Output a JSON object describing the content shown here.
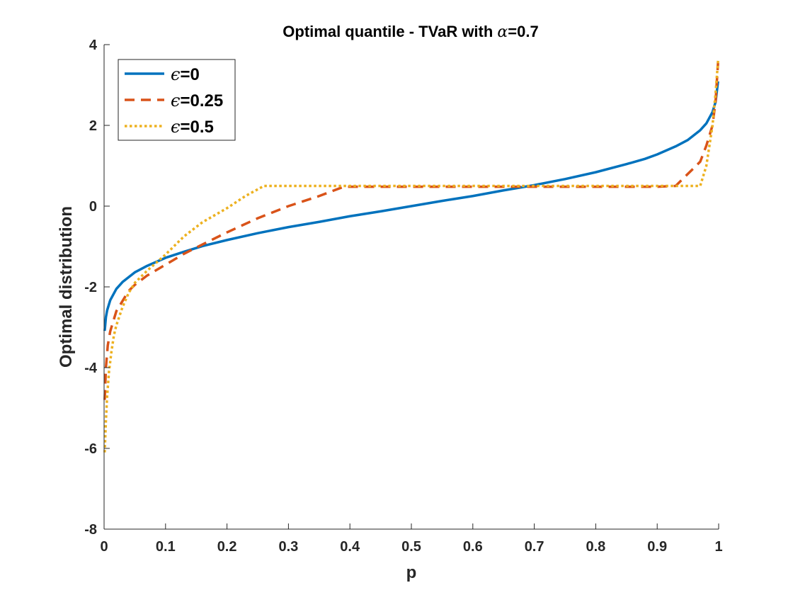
{
  "chart_data": {
    "type": "line",
    "title": {
      "prefix": "Optimal quantile - TVaR with ",
      "symbol": "α",
      "suffix": "=0.7"
    },
    "xlabel": "p",
    "ylabel": "Optimal distribution",
    "xlim": [
      0,
      1
    ],
    "ylim": [
      -8,
      4
    ],
    "xticks": [
      0,
      0.1,
      0.2,
      0.3,
      0.4,
      0.5,
      0.6,
      0.7,
      0.8,
      0.9,
      1
    ],
    "xtick_labels": [
      "0",
      "0.1",
      "0.2",
      "0.3",
      "0.4",
      "0.5",
      "0.6",
      "0.7",
      "0.8",
      "0.9",
      "1"
    ],
    "yticks": [
      -8,
      -6,
      -4,
      -2,
      0,
      2,
      4
    ],
    "ytick_labels": [
      "-8",
      "-6",
      "-4",
      "-2",
      "0",
      "2",
      "4"
    ],
    "grid": false,
    "legend_position": "top-left",
    "series": [
      {
        "name": "ϵ=0",
        "legend_symbol": "ϵ",
        "legend_value": "=0",
        "color": "#0072BD",
        "style": "solid",
        "x": [
          0.001,
          0.003,
          0.005,
          0.01,
          0.02,
          0.03,
          0.05,
          0.07,
          0.1,
          0.13,
          0.16,
          0.2,
          0.25,
          0.3,
          0.35,
          0.4,
          0.45,
          0.5,
          0.55,
          0.6,
          0.65,
          0.7,
          0.75,
          0.8,
          0.85,
          0.88,
          0.9,
          0.93,
          0.95,
          0.97,
          0.98,
          0.99,
          0.995,
          0.999
        ],
        "y": [
          -3.09,
          -2.75,
          -2.58,
          -2.33,
          -2.05,
          -1.88,
          -1.64,
          -1.48,
          -1.28,
          -1.13,
          -0.99,
          -0.84,
          -0.67,
          -0.52,
          -0.39,
          -0.25,
          -0.13,
          0.0,
          0.13,
          0.25,
          0.39,
          0.52,
          0.67,
          0.84,
          1.04,
          1.17,
          1.28,
          1.48,
          1.64,
          1.88,
          2.05,
          2.33,
          2.58,
          3.09
        ]
      },
      {
        "name": "ϵ=0.25",
        "legend_symbol": "ϵ",
        "legend_value": "=0.25",
        "color": "#D95319",
        "style": "dashed",
        "x": [
          0.001,
          0.003,
          0.006,
          0.01,
          0.015,
          0.02,
          0.03,
          0.04,
          0.05,
          0.07,
          0.1,
          0.13,
          0.16,
          0.2,
          0.25,
          0.3,
          0.35,
          0.39,
          0.45,
          0.5,
          0.6,
          0.7,
          0.8,
          0.9,
          0.93,
          0.95,
          0.97,
          0.98,
          0.99,
          0.995,
          0.999
        ],
        "y": [
          -4.8,
          -4.0,
          -3.45,
          -3.1,
          -2.85,
          -2.6,
          -2.35,
          -2.1,
          -1.95,
          -1.72,
          -1.45,
          -1.18,
          -0.95,
          -0.65,
          -0.3,
          0.0,
          0.25,
          0.48,
          0.48,
          0.48,
          0.48,
          0.48,
          0.48,
          0.48,
          0.5,
          0.8,
          1.1,
          1.5,
          2.0,
          2.6,
          3.55
        ]
      },
      {
        "name": "ϵ=0.5",
        "legend_symbol": "ϵ",
        "legend_value": "=0.5",
        "color": "#EDB120",
        "style": "dotted",
        "x": [
          0.001,
          0.003,
          0.005,
          0.008,
          0.012,
          0.016,
          0.02,
          0.03,
          0.04,
          0.05,
          0.07,
          0.1,
          0.13,
          0.16,
          0.2,
          0.23,
          0.26,
          0.35,
          0.5,
          0.6,
          0.7,
          0.8,
          0.9,
          0.97,
          0.98,
          0.99,
          0.995,
          0.999
        ],
        "y": [
          -6.1,
          -5.3,
          -4.7,
          -4.1,
          -3.6,
          -3.2,
          -2.95,
          -2.5,
          -2.15,
          -1.9,
          -1.6,
          -1.2,
          -0.75,
          -0.4,
          -0.05,
          0.25,
          0.5,
          0.5,
          0.5,
          0.5,
          0.5,
          0.5,
          0.5,
          0.5,
          1.0,
          2.0,
          2.8,
          3.6
        ]
      }
    ]
  }
}
